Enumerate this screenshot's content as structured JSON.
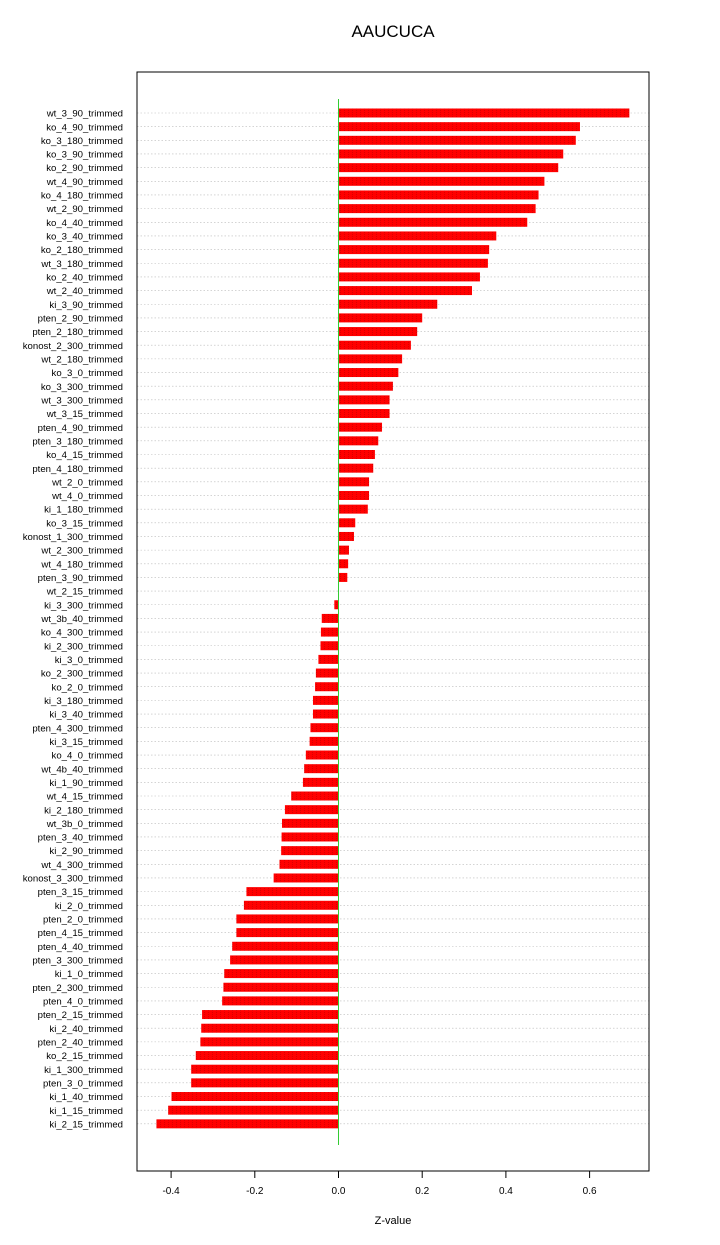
{
  "chart_data": {
    "type": "bar",
    "orientation": "horizontal",
    "title": "AAUCUCA",
    "xlabel": "Z-value",
    "ylabel": "",
    "xlim": [
      -0.47,
      0.74
    ],
    "xticks": [
      -0.4,
      -0.2,
      0.0,
      0.2,
      0.4,
      0.6
    ],
    "xtick_labels": [
      "-0.4",
      "-0.2",
      "0.0",
      "0.2",
      "0.4",
      "0.6"
    ],
    "grid": "horizontal dotted",
    "colors": {
      "bar": "#ff0000",
      "zero_line": "#33cc33",
      "grid": "#bbbbbb"
    },
    "categories": [
      "wt_3_90_trimmed",
      "ko_4_90_trimmed",
      "ko_3_180_trimmed",
      "ko_3_90_trimmed",
      "ko_2_90_trimmed",
      "wt_4_90_trimmed",
      "ko_4_180_trimmed",
      "wt_2_90_trimmed",
      "ko_4_40_trimmed",
      "ko_3_40_trimmed",
      "ko_2_180_trimmed",
      "wt_3_180_trimmed",
      "ko_2_40_trimmed",
      "wt_2_40_trimmed",
      "ki_3_90_trimmed",
      "pten_2_90_trimmed",
      "pten_2_180_trimmed",
      "konost_2_300_trimmed",
      "wt_2_180_trimmed",
      "ko_3_0_trimmed",
      "ko_3_300_trimmed",
      "wt_3_300_trimmed",
      "wt_3_15_trimmed",
      "pten_4_90_trimmed",
      "pten_3_180_trimmed",
      "ko_4_15_trimmed",
      "pten_4_180_trimmed",
      "wt_2_0_trimmed",
      "wt_4_0_trimmed",
      "ki_1_180_trimmed",
      "ko_3_15_trimmed",
      "konost_1_300_trimmed",
      "wt_2_300_trimmed",
      "wt_4_180_trimmed",
      "pten_3_90_trimmed",
      "wt_2_15_trimmed",
      "ki_3_300_trimmed",
      "wt_3b_40_trimmed",
      "ko_4_300_trimmed",
      "ki_2_300_trimmed",
      "ki_3_0_trimmed",
      "ko_2_300_trimmed",
      "ko_2_0_trimmed",
      "ki_3_180_trimmed",
      "ki_3_40_trimmed",
      "pten_4_300_trimmed",
      "ki_3_15_trimmed",
      "ko_4_0_trimmed",
      "wt_4b_40_trimmed",
      "ki_1_90_trimmed",
      "wt_4_15_trimmed",
      "ki_2_180_trimmed",
      "wt_3b_0_trimmed",
      "pten_3_40_trimmed",
      "ki_2_90_trimmed",
      "wt_4_300_trimmed",
      "konost_3_300_trimmed",
      "pten_3_15_trimmed",
      "ki_2_0_trimmed",
      "pten_2_0_trimmed",
      "pten_4_15_trimmed",
      "pten_4_40_trimmed",
      "pten_3_300_trimmed",
      "ki_1_0_trimmed",
      "pten_2_300_trimmed",
      "pten_4_0_trimmed",
      "pten_2_15_trimmed",
      "ki_2_40_trimmed",
      "pten_2_40_trimmed",
      "ko_2_15_trimmed",
      "ki_1_300_trimmed",
      "pten_3_0_trimmed",
      "ki_1_40_trimmed",
      "ki_1_15_trimmed",
      "ki_2_15_trimmed"
    ],
    "values": [
      0.695,
      0.577,
      0.567,
      0.537,
      0.525,
      0.492,
      0.478,
      0.471,
      0.451,
      0.377,
      0.36,
      0.357,
      0.338,
      0.319,
      0.236,
      0.2,
      0.188,
      0.173,
      0.152,
      0.143,
      0.13,
      0.122,
      0.122,
      0.104,
      0.095,
      0.087,
      0.083,
      0.073,
      0.073,
      0.07,
      0.04,
      0.037,
      0.025,
      0.023,
      0.021,
      0.0,
      -0.01,
      -0.04,
      -0.042,
      -0.043,
      -0.048,
      -0.054,
      -0.056,
      -0.061,
      -0.061,
      -0.067,
      -0.069,
      -0.078,
      -0.082,
      -0.085,
      -0.113,
      -0.128,
      -0.135,
      -0.136,
      -0.137,
      -0.141,
      -0.155,
      -0.22,
      -0.226,
      -0.244,
      -0.244,
      -0.254,
      -0.259,
      -0.273,
      -0.275,
      -0.278,
      -0.326,
      -0.328,
      -0.33,
      -0.341,
      -0.352,
      -0.352,
      -0.399,
      -0.407,
      -0.435
    ]
  }
}
